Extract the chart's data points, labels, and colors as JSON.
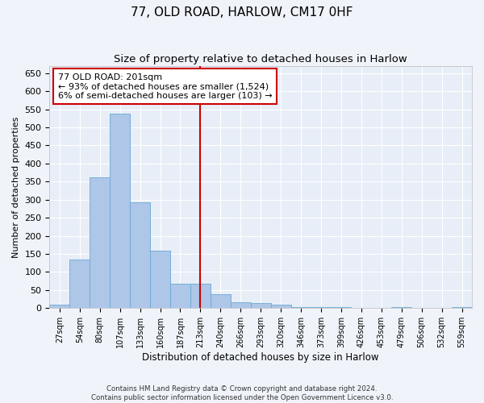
{
  "title": "77, OLD ROAD, HARLOW, CM17 0HF",
  "subtitle": "Size of property relative to detached houses in Harlow",
  "xlabel": "Distribution of detached houses by size in Harlow",
  "ylabel": "Number of detached properties",
  "bar_color": "#aec6e8",
  "bar_edge_color": "#6aaad4",
  "background_color": "#e8eef7",
  "grid_color": "#ffffff",
  "fig_facecolor": "#f0f4fa",
  "categories": [
    "27sqm",
    "54sqm",
    "80sqm",
    "107sqm",
    "133sqm",
    "160sqm",
    "187sqm",
    "213sqm",
    "240sqm",
    "266sqm",
    "293sqm",
    "320sqm",
    "346sqm",
    "373sqm",
    "399sqm",
    "426sqm",
    "453sqm",
    "479sqm",
    "506sqm",
    "532sqm",
    "559sqm"
  ],
  "values": [
    10,
    135,
    362,
    538,
    292,
    160,
    67,
    67,
    38,
    17,
    15,
    9,
    4,
    2,
    2,
    1,
    0,
    3,
    0,
    0,
    3
  ],
  "ylim": [
    0,
    670
  ],
  "yticks": [
    0,
    50,
    100,
    150,
    200,
    250,
    300,
    350,
    400,
    450,
    500,
    550,
    600,
    650
  ],
  "vline_x_index": 7,
  "vline_color": "#cc0000",
  "annotation_title": "77 OLD ROAD: 201sqm",
  "annotation_line1": "← 93% of detached houses are smaller (1,524)",
  "annotation_line2": "6% of semi-detached houses are larger (103) →",
  "footer1": "Contains HM Land Registry data © Crown copyright and database right 2024.",
  "footer2": "Contains public sector information licensed under the Open Government Licence v3.0."
}
